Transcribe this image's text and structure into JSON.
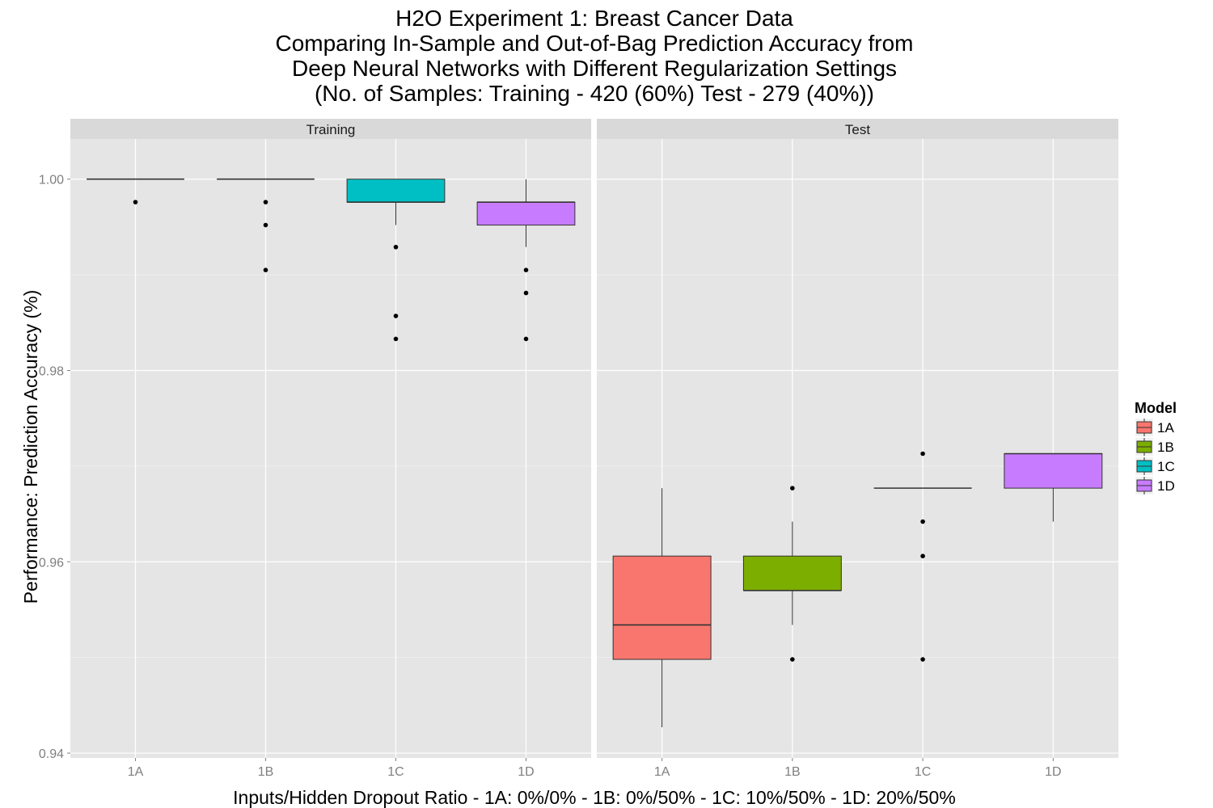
{
  "title_lines": [
    "H2O Experiment 1: Breast Cancer Data",
    "Comparing In-Sample and Out-of-Bag Prediction Accuracy from",
    "Deep Neural Networks with Different Regularization Settings",
    "(No. of Samples: Training - 420 (60%)  Test - 279 (40%))"
  ],
  "chart_data": {
    "type": "box",
    "title": "H2O Experiment 1: Breast Cancer Data Comparing In-Sample and Out-of-Bag Prediction Accuracy from Deep Neural Networks with Different Regularization Settings (No. of Samples: Training - 420 (60%)  Test - 279 (40%))",
    "xlabel": "Inputs/Hidden Dropout Ratio - 1A: 0%/0% - 1B: 0%/50% - 1C: 10%/50% - 1D: 20%/50%",
    "ylabel": "Performance: Prediction Accuracy (%)",
    "ylim": [
      0.9395,
      1.0042
    ],
    "yticks": [
      0.94,
      0.96,
      0.98,
      1.0
    ],
    "ytick_labels": [
      "0.94",
      "0.96",
      "0.98",
      "1.00"
    ],
    "categories": [
      "1A",
      "1B",
      "1C",
      "1D"
    ],
    "grid": true,
    "legend": {
      "title": "Model",
      "position": "right",
      "items": [
        {
          "label": "1A",
          "color": "#F8766D"
        },
        {
          "label": "1B",
          "color": "#7CAE00"
        },
        {
          "label": "1C",
          "color": "#00BFC4"
        },
        {
          "label": "1D",
          "color": "#C77CFF"
        }
      ]
    },
    "panels": [
      {
        "name": "Training",
        "boxes": [
          {
            "category": "1A",
            "min": 1.0,
            "q1": 1.0,
            "median": 1.0,
            "q3": 1.0,
            "max": 1.0,
            "outliers": [
              0.9976
            ]
          },
          {
            "category": "1B",
            "min": 1.0,
            "q1": 1.0,
            "median": 1.0,
            "q3": 1.0,
            "max": 1.0,
            "outliers": [
              0.9976,
              0.9952,
              0.9905
            ]
          },
          {
            "category": "1C",
            "min": 0.9952,
            "q1": 0.9976,
            "median": 0.9976,
            "q3": 1.0,
            "max": 1.0,
            "outliers": [
              0.9929,
              0.9857,
              0.9833
            ]
          },
          {
            "category": "1D",
            "min": 0.9929,
            "q1": 0.9952,
            "median": 0.9976,
            "q3": 0.9976,
            "max": 1.0,
            "outliers": [
              0.9905,
              0.9881,
              0.9833
            ]
          }
        ]
      },
      {
        "name": "Test",
        "boxes": [
          {
            "category": "1A",
            "min": 0.9427,
            "q1": 0.9498,
            "median": 0.9534,
            "q3": 0.9606,
            "max": 0.9677,
            "outliers": []
          },
          {
            "category": "1B",
            "min": 0.9534,
            "q1": 0.957,
            "median": 0.957,
            "q3": 0.9606,
            "max": 0.9642,
            "outliers": [
              0.9677,
              0.9498
            ]
          },
          {
            "category": "1C",
            "min": 0.9677,
            "q1": 0.9677,
            "median": 0.9677,
            "q3": 0.9677,
            "max": 0.9677,
            "outliers": [
              0.9713,
              0.9642,
              0.9606,
              0.9498
            ]
          },
          {
            "category": "1D",
            "min": 0.9642,
            "q1": 0.9677,
            "median": 0.9713,
            "q3": 0.9713,
            "max": 0.9713,
            "outliers": []
          }
        ]
      }
    ]
  }
}
